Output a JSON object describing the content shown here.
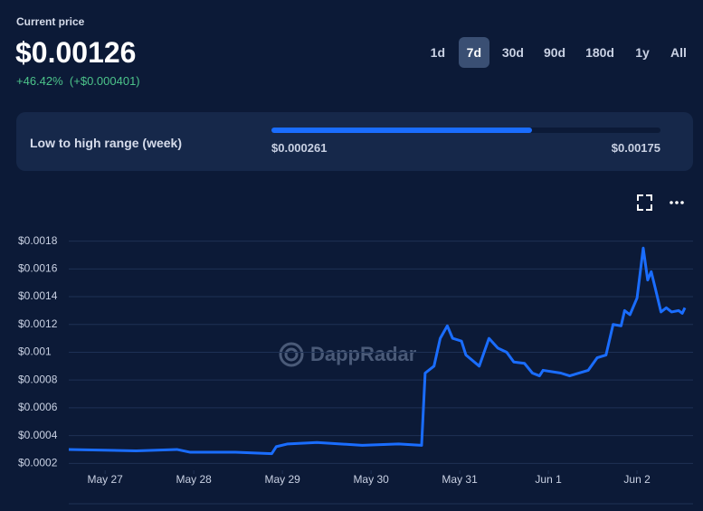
{
  "header": {
    "label": "Current price",
    "price": "$0.00126",
    "change_pct": "+46.42%",
    "change_abs": "(+$0.000401)"
  },
  "periods": [
    "1d",
    "7d",
    "30d",
    "90d",
    "180d",
    "1y",
    "All"
  ],
  "active_period": 1,
  "range": {
    "label": "Low to high range (week)",
    "low": 0.000261,
    "low_label": "$0.000261",
    "high": 0.00175,
    "high_label": "$0.00175",
    "current": 0.00126
  },
  "watermark": "DappRadar",
  "chart_data": {
    "type": "line",
    "x": [
      -0.41,
      0.35,
      0.81,
      0.96,
      1.47,
      1.88,
      1.93,
      2.06,
      2.39,
      2.9,
      3.31,
      3.57,
      3.61,
      3.71,
      3.78,
      3.86,
      3.92,
      4.02,
      4.07,
      4.22,
      4.33,
      4.43,
      4.53,
      4.61,
      4.73,
      4.82,
      4.9,
      4.94,
      5.14,
      5.24,
      5.45,
      5.55,
      5.65,
      5.73,
      5.82,
      5.86,
      5.92,
      6.0,
      6.07,
      6.12,
      6.16,
      6.21,
      6.27,
      6.33,
      6.39,
      6.47,
      6.51,
      6.54
    ],
    "series": [
      {
        "color": "#1a6dff",
        "values": [
          0.0003,
          0.00029,
          0.0003,
          0.00028,
          0.00028,
          0.00027,
          0.00032,
          0.00034,
          0.00035,
          0.00033,
          0.00034,
          0.00033,
          0.00085,
          0.0009,
          0.0011,
          0.00119,
          0.0011,
          0.00108,
          0.00098,
          0.0009,
          0.0011,
          0.00103,
          0.001,
          0.00093,
          0.00092,
          0.00085,
          0.00083,
          0.00087,
          0.00085,
          0.00083,
          0.00087,
          0.00096,
          0.00098,
          0.0012,
          0.00119,
          0.0013,
          0.00127,
          0.00139,
          0.00175,
          0.00152,
          0.00158,
          0.00145,
          0.00129,
          0.00132,
          0.00129,
          0.0013,
          0.00128,
          0.00132
        ]
      }
    ],
    "xlim": [
      -0.41,
      6.54
    ],
    "xticks": [
      {
        "value": 0,
        "label": "May 27"
      },
      {
        "value": 1,
        "label": "May 28"
      },
      {
        "value": 2,
        "label": "May 29"
      },
      {
        "value": 3,
        "label": "May 30"
      },
      {
        "value": 4,
        "label": "May 31"
      },
      {
        "value": 5,
        "label": "Jun 1"
      },
      {
        "value": 6,
        "label": "Jun 2"
      }
    ],
    "ylim": [
      0.00015,
      0.00183
    ],
    "yticks": [
      {
        "value": 0.0002,
        "label": "$0.0002"
      },
      {
        "value": 0.0004,
        "label": "$0.0004"
      },
      {
        "value": 0.0006,
        "label": "$0.0006"
      },
      {
        "value": 0.0008,
        "label": "$0.0008"
      },
      {
        "value": 0.001,
        "label": "$0.001"
      },
      {
        "value": 0.0012,
        "label": "$0.0012"
      },
      {
        "value": 0.0014,
        "label": "$0.0014"
      },
      {
        "value": 0.0016,
        "label": "$0.0016"
      },
      {
        "value": 0.0018,
        "label": "$0.0018"
      }
    ],
    "grid": true
  }
}
